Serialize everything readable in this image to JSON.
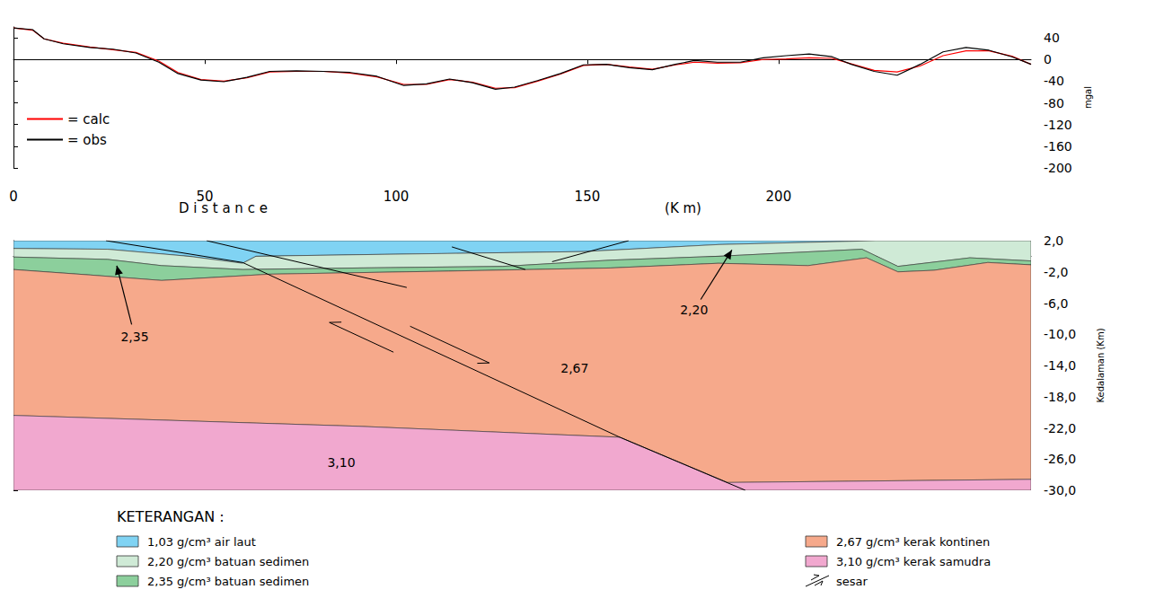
{
  "chart_data": [
    {
      "type": "line",
      "x_label": "D i s t a n c e",
      "x_label_unit": "(K m)",
      "y_label": "mgal",
      "xlim": [
        0,
        266
      ],
      "ylim": [
        -200,
        60
      ],
      "xticks": [
        0,
        50,
        100,
        150,
        200
      ],
      "yticks": [
        -200,
        -160,
        -120,
        -80,
        -40,
        0,
        40
      ],
      "grid": false,
      "legend": "left",
      "x": [
        0,
        5,
        8,
        13,
        20,
        26,
        32,
        38,
        43,
        49,
        55,
        61,
        67,
        74,
        81,
        88,
        95,
        102,
        108,
        114,
        120,
        126,
        131,
        137,
        143,
        149,
        155,
        161,
        167,
        173,
        178,
        184,
        190,
        196,
        202,
        208,
        214,
        219,
        225,
        231,
        237,
        243,
        249,
        255,
        261,
        266
      ],
      "series": [
        {
          "name": "= calc",
          "color": "#ff0000",
          "values": [
            58,
            54,
            38,
            30,
            23,
            18,
            13,
            -3,
            -24,
            -37,
            -40,
            -34,
            -23,
            -22,
            -22,
            -25,
            -32,
            -46,
            -46,
            -37,
            -42,
            -53,
            -52,
            -40,
            -27,
            -11,
            -9,
            -14,
            -18,
            -10,
            -5,
            -7,
            -6,
            0,
            1,
            3,
            2,
            -8,
            -20,
            -23,
            -12,
            7,
            16,
            16,
            6,
            -9
          ]
        },
        {
          "name": "= obs",
          "color": "#000000",
          "values": [
            58,
            55,
            38,
            29,
            22,
            19,
            12,
            -5,
            -26,
            -38,
            -41,
            -33,
            -22,
            -21,
            -22,
            -24,
            -31,
            -48,
            -45,
            -36,
            -43,
            -55,
            -51,
            -39,
            -26,
            -10,
            -9,
            -15,
            -19,
            -9,
            -2,
            -5,
            -5,
            3,
            7,
            10,
            5,
            -9,
            -22,
            -29,
            -9,
            14,
            22,
            17,
            5,
            -9
          ]
        }
      ]
    },
    {
      "type": "cross_section",
      "y_label": "Kedalaman (Km)",
      "xlim": [
        0,
        266
      ],
      "ylim": [
        -30,
        2
      ],
      "yticks": [
        {
          "value": 2,
          "label": "2,0"
        },
        {
          "value": -2,
          "label": "-2,0"
        },
        {
          "value": -6,
          "label": "-6,0"
        },
        {
          "value": -10,
          "label": "-10,0"
        },
        {
          "value": -14,
          "label": "-14,0"
        },
        {
          "value": -18,
          "label": "-18,0"
        },
        {
          "value": -22,
          "label": "-22,0"
        },
        {
          "value": -26,
          "label": "-26,0"
        },
        {
          "value": -30,
          "label": "-30,0"
        }
      ],
      "tick_labels": "y",
      "grid": false,
      "legend_title": "KETERANGAN :",
      "layers": [
        {
          "name": "1,03 g/cm³ air laut",
          "color": "#80d3f3",
          "polygon": [
            [
              0,
              2
            ],
            [
              225.4,
              2
            ],
            [
              184.3,
              1.5
            ],
            [
              149.1,
              0.6
            ],
            [
              90.4,
              0.2
            ],
            [
              63.4,
              0.0
            ],
            [
              59.9,
              -0.9
            ],
            [
              45.8,
              0.0
            ],
            [
              24.6,
              0.9
            ],
            [
              0,
              1.0
            ]
          ]
        },
        {
          "name": "2,20 g/cm³ batuan sedimen",
          "color": "#cfead6",
          "polygon": [
            [
              0,
              1.0
            ],
            [
              24.6,
              0.9
            ],
            [
              45.8,
              0.0
            ],
            [
              59.9,
              -0.9
            ],
            [
              63.4,
              0.0
            ],
            [
              90.4,
              0.2
            ],
            [
              149.1,
              0.6
            ],
            [
              184.3,
              1.5
            ],
            [
              225.4,
              2
            ],
            [
              266,
              2
            ],
            [
              266,
              -0.6
            ],
            [
              250,
              -0.2
            ],
            [
              231.2,
              -1.3
            ],
            [
              221.8,
              0.9
            ],
            [
              184.3,
              0.0
            ],
            [
              156.1,
              -0.5
            ],
            [
              127.9,
              -1.3
            ],
            [
              90.4,
              -1.5
            ],
            [
              59.9,
              -1.7
            ],
            [
              38.7,
              -1.2
            ],
            [
              24.6,
              -0.4
            ],
            [
              0,
              -0.1
            ]
          ]
        },
        {
          "name": "2,35 g/cm³ batuan sedimen",
          "color": "#8ccf9c",
          "polygon": [
            [
              0,
              -0.1
            ],
            [
              24.6,
              -0.4
            ],
            [
              38.7,
              -1.2
            ],
            [
              59.9,
              -1.7
            ],
            [
              90.4,
              -1.5
            ],
            [
              127.9,
              -1.3
            ],
            [
              156.1,
              -0.5
            ],
            [
              184.3,
              0.0
            ],
            [
              221.8,
              0.9
            ],
            [
              231.2,
              -1.3
            ],
            [
              250,
              -0.2
            ],
            [
              266,
              -0.6
            ],
            [
              266,
              -1.1
            ],
            [
              254.7,
              -0.8
            ],
            [
              240.6,
              -1.8
            ],
            [
              231.2,
              -2.0
            ],
            [
              223,
              -0.2
            ],
            [
              207.7,
              -1.2
            ],
            [
              184.3,
              -0.9
            ],
            [
              156.1,
              -1.5
            ],
            [
              113.8,
              -1.9
            ],
            [
              66.9,
              -2.3
            ],
            [
              38.7,
              -3.1
            ],
            [
              20,
              -2.4
            ],
            [
              0,
              -1.7
            ]
          ]
        },
        {
          "name": "2,67 g/cm³ kerak kontinen",
          "color": "#f6a98b",
          "polygon": [
            [
              0,
              -1.7
            ],
            [
              20,
              -2.4
            ],
            [
              38.7,
              -3.1
            ],
            [
              66.9,
              -2.3
            ],
            [
              113.8,
              -1.9
            ],
            [
              156.1,
              -1.5
            ],
            [
              184.3,
              -0.9
            ],
            [
              207.7,
              -1.2
            ],
            [
              223,
              -0.2
            ],
            [
              231.2,
              -2.0
            ],
            [
              240.6,
              -1.8
            ],
            [
              254.7,
              -0.8
            ],
            [
              266,
              -1.1
            ],
            [
              266,
              -28.6
            ],
            [
              186.6,
              -29.0
            ],
            [
              158.5,
              -23.2
            ],
            [
              90.4,
              -21.8
            ],
            [
              0,
              -20.4
            ]
          ]
        },
        {
          "name": "3,10 g/cm³ kerak samudra",
          "color": "#f1a8cf",
          "polygon": [
            [
              0,
              -20.4
            ],
            [
              90.4,
              -21.8
            ],
            [
              158.5,
              -23.2
            ],
            [
              186.6,
              -29.0
            ],
            [
              266,
              -28.6
            ],
            [
              266,
              -30
            ],
            [
              0,
              -30
            ]
          ]
        }
      ],
      "faults": [
        [
          [
            24.2,
            2
          ],
          [
            59.9,
            -0.8
          ],
          [
            158.5,
            -23.2
          ],
          [
            191.3,
            -30
          ]
        ],
        [
          [
            50.5,
            2
          ],
          [
            102.8,
            -4.0
          ]
        ],
        [
          [
            114.6,
            1.2
          ],
          [
            133.8,
            -1.7
          ]
        ],
        [
          [
            140.8,
            -0.7
          ],
          [
            160.8,
            2
          ]
        ]
      ],
      "fault_legend": "sesar",
      "annotations": [
        {
          "text": "2,35",
          "x": 31.7,
          "y": -10.3,
          "arrow_to": [
            27.0,
            -1.2
          ]
        },
        {
          "text": "2,20",
          "x": 177.9,
          "y": -6.9,
          "arrow_to": [
            187.8,
            0.8
          ]
        },
        {
          "text": "2,67",
          "x": 146.7,
          "y": -14.3
        },
        {
          "text": "3,10",
          "x": 85.7,
          "y": -26.4
        }
      ]
    }
  ]
}
